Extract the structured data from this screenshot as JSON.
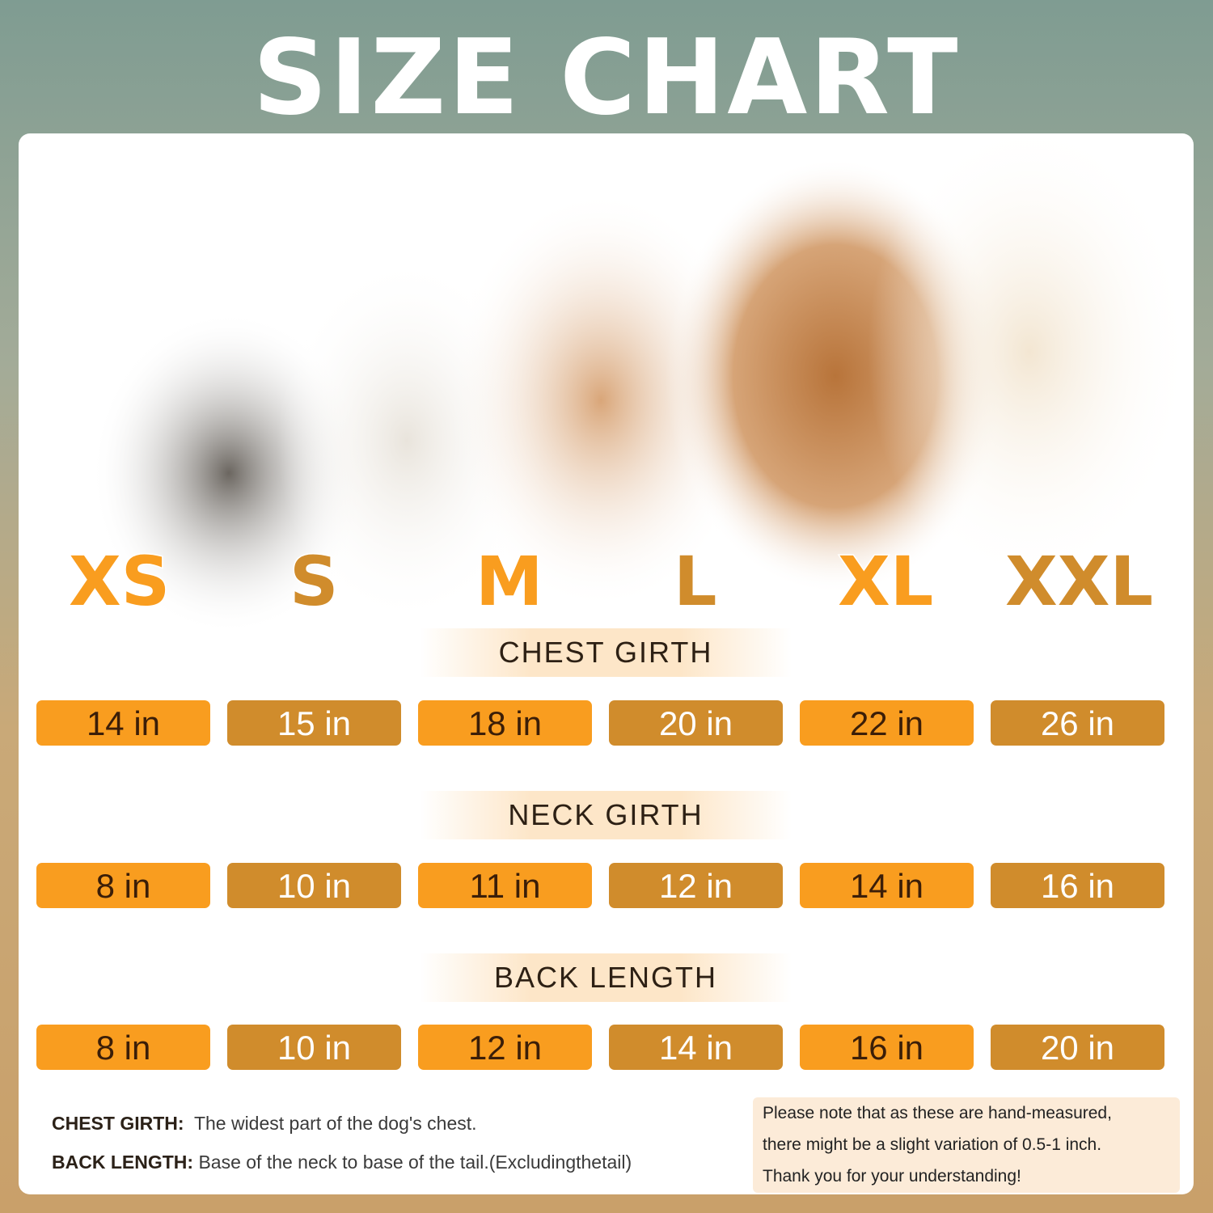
{
  "title": "SIZE CHART",
  "sizes": [
    {
      "label": "XS",
      "color": "#f99d1f"
    },
    {
      "label": "S",
      "color": "#d08c2c"
    },
    {
      "label": "M",
      "color": "#f99d1f"
    },
    {
      "label": "L",
      "color": "#d08c2c"
    },
    {
      "label": "XL",
      "color": "#f99d1f"
    },
    {
      "label": "XXL",
      "color": "#d08c2c"
    }
  ],
  "sections": [
    {
      "label": "CHEST GIRTH",
      "values": [
        "14 in",
        "15 in",
        "18 in",
        "20 in",
        "22 in",
        "26 in"
      ]
    },
    {
      "label": "NECK GIRTH",
      "values": [
        "8 in",
        "10 in",
        "11 in",
        "12 in",
        "14 in",
        "16 in"
      ]
    },
    {
      "label": "BACK LENGTH",
      "values": [
        "8 in",
        "10 in",
        "12 in",
        "14 in",
        "16 in",
        "20 in"
      ]
    }
  ],
  "definitions": [
    {
      "term": "CHEST GIRTH:",
      "text": "The widest part of the dog's chest."
    },
    {
      "term": "BACK LENGTH:",
      "text": "Base of the neck to base of the tail.(Excludingthetail)"
    }
  ],
  "note": [
    "Please note that as these are hand-measured,",
    "there might be a slight variation of 0.5-1 inch.",
    "Thank you for your understanding!"
  ],
  "colors": {
    "light_pill": "#f99d1f",
    "dark_pill": "#d08c2c"
  }
}
